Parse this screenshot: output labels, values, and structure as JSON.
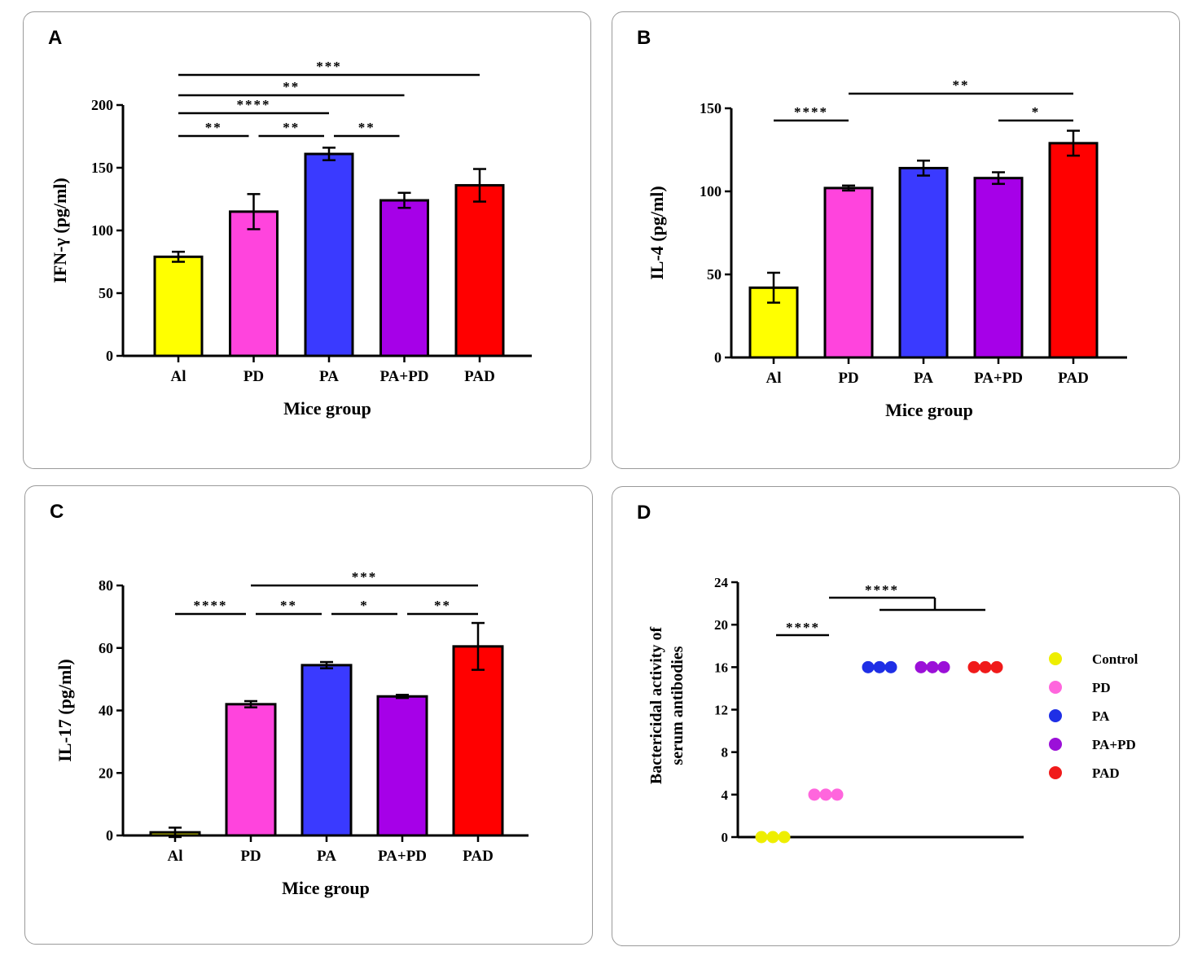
{
  "chart_data": [
    {
      "panel_label": "A",
      "type": "bar",
      "title": "",
      "xlabel": "Mice group",
      "ylabel": "IFN-γ (pg/ml)",
      "ylim": [
        0,
        200
      ],
      "ytick_values": [
        0,
        50,
        100,
        150,
        200
      ],
      "ytick_labels": [
        "0",
        "50",
        "100",
        "150",
        "200"
      ],
      "categories": [
        "Al",
        "PD",
        "PA",
        "PA+PD",
        "PAD"
      ],
      "values": [
        79,
        115,
        161,
        124,
        136
      ],
      "errors": [
        4,
        14,
        5,
        6,
        13
      ],
      "colors": [
        "#ffff00",
        "#ff44dd",
        "#3a3aff",
        "#a600e8",
        "#ff0000"
      ],
      "significance": [
        {
          "from": 0,
          "to": 1,
          "label": "**",
          "level": 0
        },
        {
          "from": 1,
          "to": 2,
          "label": "**",
          "level": 0
        },
        {
          "from": 2,
          "to": 3,
          "label": "**",
          "level": 0
        },
        {
          "from": 0,
          "to": 2,
          "label": "****",
          "level": 1
        },
        {
          "from": 0,
          "to": 3,
          "label": "**",
          "level": 2
        },
        {
          "from": 0,
          "to": 4,
          "label": "***",
          "level": 3
        }
      ]
    },
    {
      "panel_label": "B",
      "type": "bar",
      "title": "",
      "xlabel": "Mice group",
      "ylabel": "IL-4 (pg/ml)",
      "ylim": [
        0,
        150
      ],
      "ytick_values": [
        0,
        50,
        100,
        150
      ],
      "ytick_labels": [
        "0",
        "50",
        "100",
        "150"
      ],
      "categories": [
        "Al",
        "PD",
        "PA",
        "PA+PD",
        "PAD"
      ],
      "values": [
        42,
        102,
        114,
        108,
        129
      ],
      "errors": [
        9,
        1.5,
        4.5,
        3.5,
        7.5
      ],
      "colors": [
        "#ffff00",
        "#ff44dd",
        "#3a3aff",
        "#a600e8",
        "#ff0000"
      ],
      "significance": [
        {
          "from": 0,
          "to": 1,
          "label": "****",
          "level": 1
        },
        {
          "from": 3,
          "to": 4,
          "label": "*",
          "level": 1
        },
        {
          "from": 1,
          "to": 4,
          "label": "**",
          "level": 2
        }
      ]
    },
    {
      "panel_label": "C",
      "type": "bar",
      "title": "",
      "xlabel": "Mice group",
      "ylabel": "IL-17 (pg/ml)",
      "ylim": [
        0,
        80
      ],
      "ytick_values": [
        0,
        20,
        40,
        60,
        80
      ],
      "ytick_labels": [
        "0",
        "20",
        "40",
        "60",
        "80"
      ],
      "categories": [
        "Al",
        "PD",
        "PA",
        "PA+PD",
        "PAD"
      ],
      "values": [
        1,
        42,
        54.5,
        44.5,
        60.5
      ],
      "errors": [
        1.5,
        1,
        1,
        0.5,
        7.5
      ],
      "colors": [
        "#ffff00",
        "#ff44dd",
        "#3a3aff",
        "#a600e8",
        "#ff0000"
      ],
      "significance": [
        {
          "from": 0,
          "to": 1,
          "label": "****",
          "level": 0
        },
        {
          "from": 1,
          "to": 2,
          "label": "**",
          "level": 0
        },
        {
          "from": 2,
          "to": 3,
          "label": "*",
          "level": 0
        },
        {
          "from": 3,
          "to": 4,
          "label": "**",
          "level": 0
        },
        {
          "from": 1,
          "to": 4,
          "label": "***",
          "level": 1
        }
      ]
    },
    {
      "panel_label": "D",
      "type": "scatter",
      "title": "",
      "xlabel": "",
      "ylabel_lines": [
        "Bactericidal activity of",
        "serum antibodies"
      ],
      "ylim": [
        0,
        24
      ],
      "ytick_values": [
        0,
        4,
        8,
        12,
        16,
        20,
        24
      ],
      "ytick_labels": [
        "0",
        "4",
        "8",
        "12",
        "16",
        "20",
        "24"
      ],
      "legend_position": "right",
      "series": [
        {
          "name": "Control",
          "color": "#eeee00",
          "values": [
            0,
            0,
            0
          ]
        },
        {
          "name": "PD",
          "color": "#ff66dd",
          "values": [
            4,
            4,
            4
          ]
        },
        {
          "name": "PA",
          "color": "#1f2fe6",
          "values": [
            16,
            16,
            16
          ]
        },
        {
          "name": "PA+PD",
          "color": "#9b10d8",
          "values": [
            16,
            16,
            16
          ]
        },
        {
          "name": "PAD",
          "color": "#f01a1a",
          "values": [
            16,
            16,
            16
          ]
        }
      ],
      "significance": [
        {
          "label": "****",
          "from": 0,
          "to": 1
        },
        {
          "label": "****",
          "from": 1,
          "to_group": [
            2,
            4
          ]
        }
      ]
    }
  ]
}
